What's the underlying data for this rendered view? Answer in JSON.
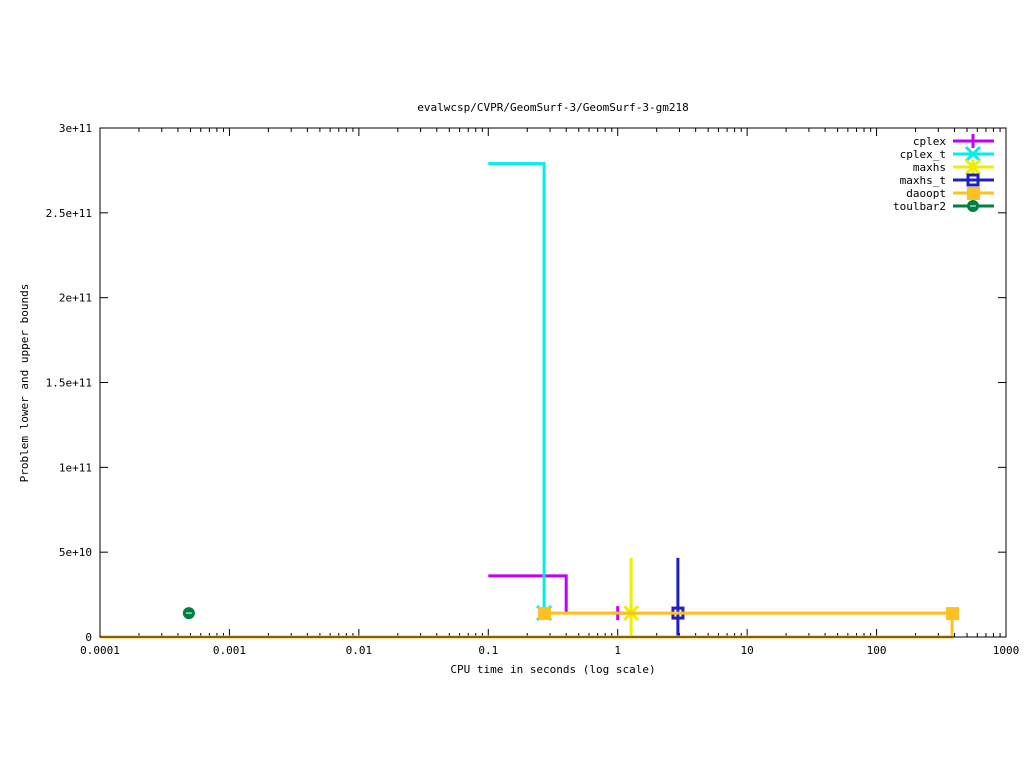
{
  "chart_data": {
    "type": "line",
    "title": "evalwcsp/CVPR/GeomSurf-3/GeomSurf-3-gm218",
    "xlabel": "CPU time in seconds (log scale)",
    "ylabel": "Problem lower and upper bounds",
    "xscale": "log",
    "xlim": [
      0.0001,
      1000
    ],
    "ylim": [
      0,
      300000000000
    ],
    "grid": false,
    "legend_position": "top-right",
    "x_ticks": [
      {
        "v": 0.0001,
        "label": "0.0001"
      },
      {
        "v": 0.001,
        "label": "0.001"
      },
      {
        "v": 0.01,
        "label": "0.01"
      },
      {
        "v": 0.1,
        "label": "0.1"
      },
      {
        "v": 1,
        "label": "1"
      },
      {
        "v": 10,
        "label": "10"
      },
      {
        "v": 100,
        "label": "100"
      },
      {
        "v": 1000,
        "label": "1000"
      }
    ],
    "y_ticks": [
      {
        "v": 0,
        "label": "0"
      },
      {
        "v": 50000000000,
        "label": "5e+10"
      },
      {
        "v": 100000000000,
        "label": "1e+11"
      },
      {
        "v": 150000000000,
        "label": "1.5e+11"
      },
      {
        "v": 200000000000,
        "label": "2e+11"
      },
      {
        "v": 250000000000,
        "label": "2.5e+11"
      },
      {
        "v": 300000000000,
        "label": "3e+11"
      }
    ],
    "series": [
      {
        "name": "cplex",
        "color": "#c000ff",
        "marker": "plus",
        "lines": [
          [
            [
              0.1,
              36000000000
            ],
            [
              0.4,
              36000000000
            ],
            [
              0.4,
              14100000000
            ]
          ]
        ],
        "points": [
          [
            1.0,
            14100000000
          ]
        ]
      },
      {
        "name": "cplex_t",
        "color": "#00eeee",
        "marker": "cross",
        "lines": [
          [
            [
              0.1,
              279000000000
            ],
            [
              0.27,
              279000000000
            ],
            [
              0.27,
              14100000000
            ]
          ]
        ],
        "points": [
          [
            0.27,
            14100000000
          ]
        ]
      },
      {
        "name": "maxhs",
        "color": "#eeee00",
        "marker": "star",
        "lines": [
          [
            [
              1.27,
              46600000000
            ],
            [
              1.27,
              0
            ]
          ]
        ],
        "points": [
          [
            1.27,
            14100000000
          ]
        ]
      },
      {
        "name": "maxhs_t",
        "color": "#2020c0",
        "marker": "box",
        "lines": [
          [
            [
              2.92,
              46600000000
            ],
            [
              2.92,
              0
            ]
          ]
        ],
        "points": [
          [
            2.92,
            14100000000
          ]
        ]
      },
      {
        "name": "daoopt",
        "color": "#ffc020",
        "marker": "filled-box",
        "lines": [
          [
            [
              0.27,
              14100000000
            ],
            [
              383,
              14100000000
            ]
          ],
          [
            [
              0.0001,
              0
            ],
            [
              383,
              0
            ],
            [
              383,
              14100000000
            ]
          ]
        ],
        "points": [
          [
            0.27,
            14100000000
          ],
          [
            383,
            14100000000
          ]
        ]
      },
      {
        "name": "toulbar2",
        "color": "#008040",
        "marker": "circle",
        "lines": [],
        "points": [
          [
            0.000486,
            14100000000
          ]
        ]
      }
    ]
  }
}
